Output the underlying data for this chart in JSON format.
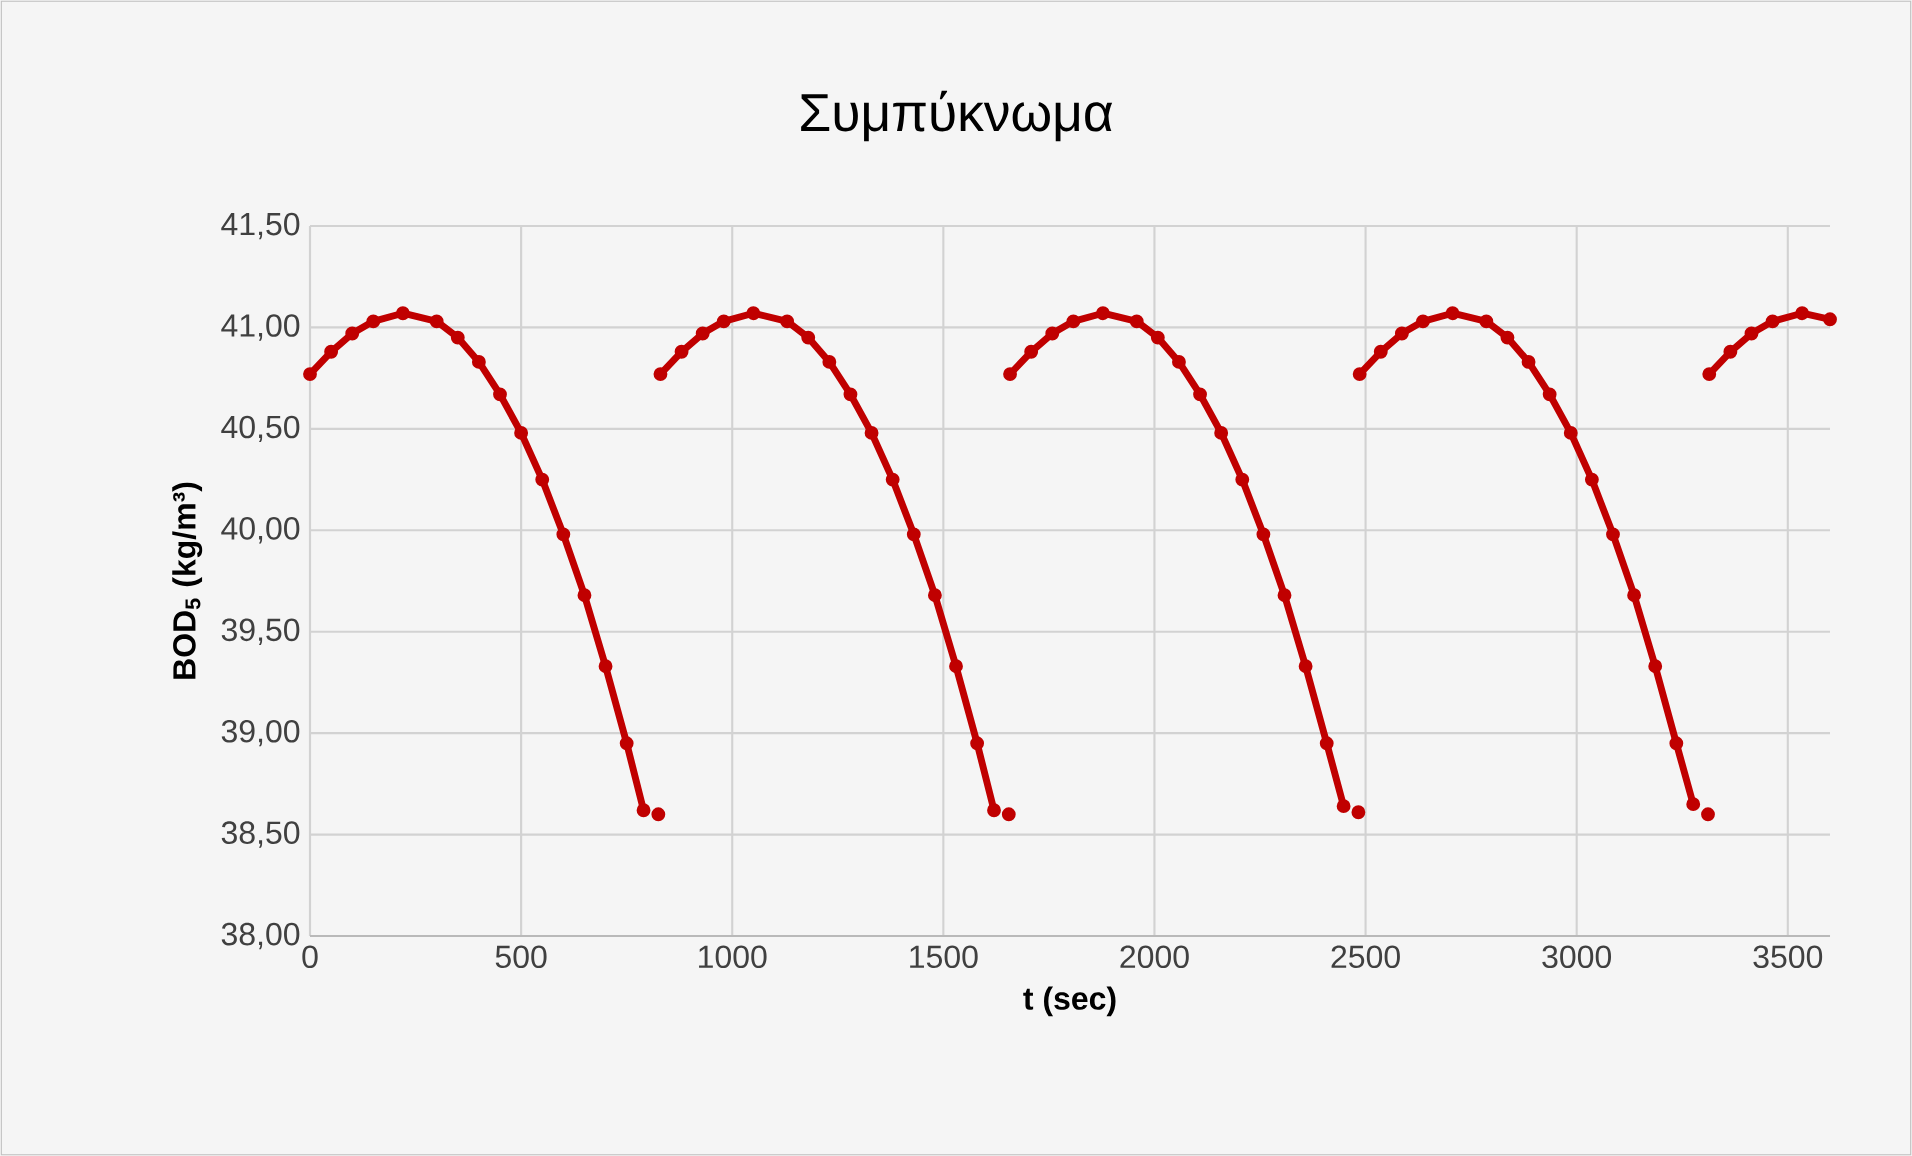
{
  "chart_data": {
    "type": "line",
    "title": "Συμπύκνωμα",
    "xlabel": "t (sec)",
    "ylabel": "BOD$_{5}$ (kg/m³)",
    "xlim": [
      0,
      3600
    ],
    "xticks": [
      0,
      500,
      1000,
      1500,
      2000,
      2500,
      3000,
      3500
    ],
    "ylim": [
      38,
      41.5
    ],
    "yticks": [
      {
        "value": 38,
        "label": "38,00"
      },
      {
        "value": 38.5,
        "label": "38,50"
      },
      {
        "value": 39,
        "label": "39,00"
      },
      {
        "value": 39.5,
        "label": "39,50"
      },
      {
        "value": 40,
        "label": "40,00"
      },
      {
        "value": 40.5,
        "label": "40,50"
      },
      {
        "value": 41,
        "label": "41,00"
      },
      {
        "value": 41.5,
        "label": "41,50"
      }
    ],
    "grid": true,
    "marker": "circle",
    "line_style": "solid",
    "series": [
      {
        "color": "#c00000",
        "x": [
          0,
          50,
          100,
          150,
          220,
          300,
          350,
          400,
          450,
          500,
          550,
          600,
          650,
          700,
          750,
          790,
          800,
          825,
          828,
          830,
          880,
          930,
          980,
          1050,
          1130,
          1180,
          1230,
          1280,
          1330,
          1380,
          1430,
          1480,
          1530,
          1580,
          1620,
          1630,
          1655,
          1656,
          1658,
          1708,
          1758,
          1808,
          1878,
          1958,
          2008,
          2058,
          2108,
          2158,
          2208,
          2258,
          2308,
          2358,
          2408,
          2448,
          2458,
          2483,
          2484,
          2486,
          2536,
          2586,
          2636,
          2706,
          2786,
          2836,
          2886,
          2936,
          2986,
          3036,
          3086,
          3136,
          3186,
          3236,
          3276,
          3286,
          3311,
          3312,
          3314,
          3364,
          3414,
          3464,
          3534,
          3600
        ],
        "values": [
          40.77,
          40.88,
          40.97,
          41.03,
          41.07,
          41.03,
          40.95,
          40.83,
          40.67,
          40.48,
          40.25,
          39.98,
          39.68,
          39.33,
          38.95,
          38.62,
          null,
          38.6,
          null,
          40.77,
          40.88,
          40.97,
          41.03,
          41.07,
          41.03,
          40.95,
          40.83,
          40.67,
          40.48,
          40.25,
          39.98,
          39.68,
          39.33,
          38.95,
          38.62,
          null,
          38.6,
          null,
          40.77,
          40.88,
          40.97,
          41.03,
          41.07,
          41.03,
          40.95,
          40.83,
          40.67,
          40.48,
          40.25,
          39.98,
          39.68,
          39.33,
          38.95,
          38.64,
          null,
          38.61,
          null,
          40.77,
          40.88,
          40.97,
          41.03,
          41.07,
          41.03,
          40.95,
          40.83,
          40.67,
          40.48,
          40.25,
          39.98,
          39.68,
          39.33,
          38.95,
          38.65,
          null,
          38.6,
          null,
          40.77,
          40.88,
          40.97,
          41.03,
          41.07,
          41.04
        ]
      }
    ]
  }
}
